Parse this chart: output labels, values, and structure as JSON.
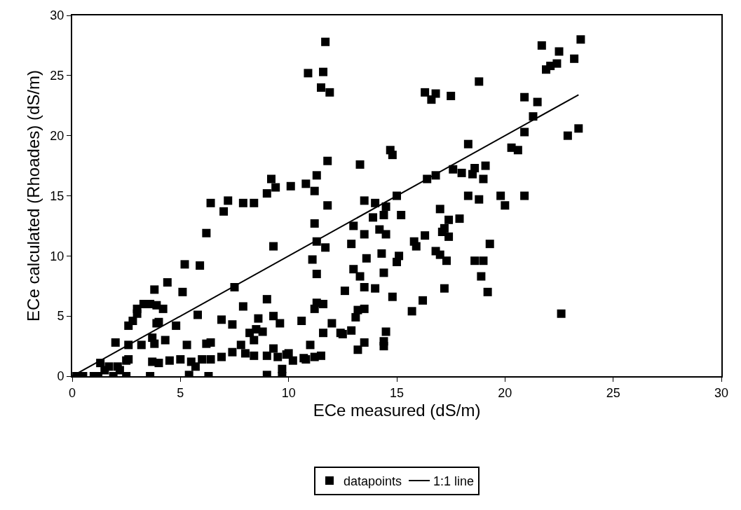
{
  "chart_data": {
    "type": "scatter",
    "xlabel": "ECe measured (dS/m)",
    "ylabel": "ECe calculated (Rhoades) (dS/m)",
    "xlim": [
      0,
      30
    ],
    "ylim": [
      0,
      30
    ],
    "xticks": [
      0,
      5,
      10,
      15,
      20,
      25,
      30
    ],
    "yticks": [
      0,
      5,
      10,
      15,
      20,
      25,
      30
    ],
    "legend": "bottom",
    "series": [
      {
        "name": "datapoints",
        "marker": "square",
        "color": "#000000",
        "x": [
          11.7,
          10.9,
          11.6,
          11.5,
          11.9,
          21.7,
          22.5,
          22.1,
          22.4,
          21.9,
          23.5,
          23.2,
          18.8,
          16.3,
          16.6,
          16.8,
          17.5,
          20.9,
          21.5,
          21.3,
          23.4,
          22.9,
          20.9,
          18.3,
          20.3,
          20.6,
          14.7,
          14.8,
          11.8,
          13.3,
          11.3,
          10.8,
          10.1,
          11.2,
          9.2,
          9.0,
          9.4,
          6.4,
          7.2,
          7.0,
          7.9,
          8.4,
          11.8,
          6.2,
          9.3,
          11.2,
          11.3,
          11.7,
          11.1,
          11.3,
          15.0,
          13.5,
          14.0,
          14.5,
          13.9,
          15.2,
          14.4,
          13.0,
          13.5,
          14.2,
          14.5,
          12.9,
          13.6,
          14.3,
          14.4,
          13.0,
          13.3,
          12.6,
          13.5,
          14.0,
          15.0,
          15.1,
          14.8,
          15.7,
          16.2,
          15.8,
          15.9,
          16.3,
          16.4,
          16.8,
          17.6,
          18.0,
          18.6,
          18.5,
          19.1,
          18.8,
          18.3,
          19.0,
          19.8,
          20.0,
          20.9,
          17.0,
          17.4,
          17.9,
          17.2,
          17.4,
          17.1,
          16.8,
          17.0,
          17.3,
          17.2,
          18.6,
          19.0,
          18.9,
          19.3,
          19.2,
          22.6,
          13.2,
          13.5,
          13.1,
          13.2,
          13.5,
          14.4,
          14.5,
          14.4,
          12.4,
          12.0,
          12.5,
          12.9,
          11.3,
          11.6,
          11.2,
          10.6,
          11.0,
          11.6,
          11.5,
          11.2,
          10.7,
          10.0,
          10.2,
          10.8,
          5.2,
          5.9,
          4.4,
          3.8,
          5.1,
          7.5,
          3.0,
          3.3,
          3.6,
          3.9,
          4.2,
          2.6,
          2.8,
          3.0,
          4.0,
          3.9,
          4.8,
          5.8,
          6.9,
          7.4,
          7.9,
          9.0,
          9.3,
          9.6,
          8.6,
          8.5,
          8.2,
          8.8,
          8.4,
          6.2,
          6.4,
          5.3,
          4.3,
          3.7,
          3.8,
          2.0,
          2.6,
          3.2,
          7.8,
          7.4,
          6.9,
          6.4,
          8.0,
          8.4,
          9.0,
          9.5,
          9.3,
          9.9,
          9.7,
          9.7,
          9.0,
          6.3,
          5.4,
          5.7,
          6.0,
          4.0,
          3.7,
          4.5,
          5.0,
          5.5,
          3.6,
          2.5,
          2.5,
          2.1,
          1.7,
          1.3,
          1.5,
          0.5,
          0.2,
          1.0,
          1.9,
          2.2,
          2.6,
          1.2
        ],
        "values": [
          27.8,
          25.2,
          25.3,
          24.0,
          23.6,
          27.5,
          27.0,
          25.8,
          26.0,
          25.5,
          28.0,
          26.4,
          24.5,
          23.6,
          23.0,
          23.5,
          23.3,
          23.2,
          22.8,
          21.6,
          20.6,
          20.0,
          20.3,
          19.3,
          19.0,
          18.8,
          18.8,
          18.4,
          17.9,
          17.6,
          16.7,
          16.0,
          15.8,
          15.4,
          16.4,
          15.2,
          15.7,
          14.4,
          14.6,
          13.7,
          14.4,
          14.4,
          14.2,
          11.9,
          10.8,
          12.7,
          11.2,
          10.7,
          9.7,
          8.5,
          15.0,
          14.6,
          14.4,
          14.1,
          13.2,
          13.4,
          13.4,
          12.5,
          11.8,
          12.2,
          11.8,
          11.0,
          9.8,
          10.2,
          8.6,
          8.9,
          8.3,
          7.1,
          7.4,
          7.3,
          9.5,
          10.0,
          6.6,
          5.4,
          6.3,
          11.2,
          10.8,
          11.7,
          16.4,
          16.7,
          17.2,
          16.9,
          17.3,
          16.8,
          17.5,
          14.7,
          15.0,
          16.4,
          15.0,
          14.2,
          15.0,
          13.9,
          13.0,
          13.1,
          12.3,
          11.6,
          12.0,
          10.4,
          10.1,
          9.6,
          7.3,
          9.6,
          9.6,
          8.3,
          11.0,
          7.0,
          5.2,
          5.5,
          5.6,
          4.9,
          2.2,
          2.8,
          2.5,
          3.7,
          2.9,
          3.6,
          4.4,
          3.5,
          3.8,
          6.1,
          6.0,
          5.6,
          4.6,
          2.6,
          3.6,
          1.7,
          1.6,
          1.5,
          1.9,
          1.3,
          1.4,
          9.3,
          9.2,
          7.8,
          7.2,
          7.0,
          7.4,
          5.6,
          6.0,
          6.0,
          5.9,
          5.6,
          4.2,
          4.6,
          5.2,
          4.5,
          4.4,
          4.2,
          5.1,
          4.7,
          4.3,
          5.8,
          6.4,
          5.0,
          4.4,
          4.8,
          3.9,
          3.6,
          3.7,
          3.0,
          2.7,
          2.8,
          2.6,
          3.0,
          3.2,
          2.7,
          2.8,
          2.6,
          2.6,
          2.6,
          2.0,
          1.6,
          1.4,
          1.9,
          1.7,
          1.7,
          1.6,
          2.3,
          1.8,
          0.6,
          0.0,
          0.1,
          0.0,
          0.1,
          0.8,
          1.4,
          1.1,
          1.2,
          1.3,
          1.4,
          1.2,
          0.0,
          0.0,
          1.3,
          0.8,
          0.8,
          1.1,
          0.5,
          0.0,
          0.0,
          0.0,
          0.0,
          0.5,
          1.4,
          0.0
        ]
      },
      {
        "name": "1:1 line",
        "type": "line",
        "line_style": "solid",
        "color": "#000000",
        "x": [
          0,
          23.4
        ],
        "values": [
          0,
          23.4
        ]
      }
    ]
  }
}
